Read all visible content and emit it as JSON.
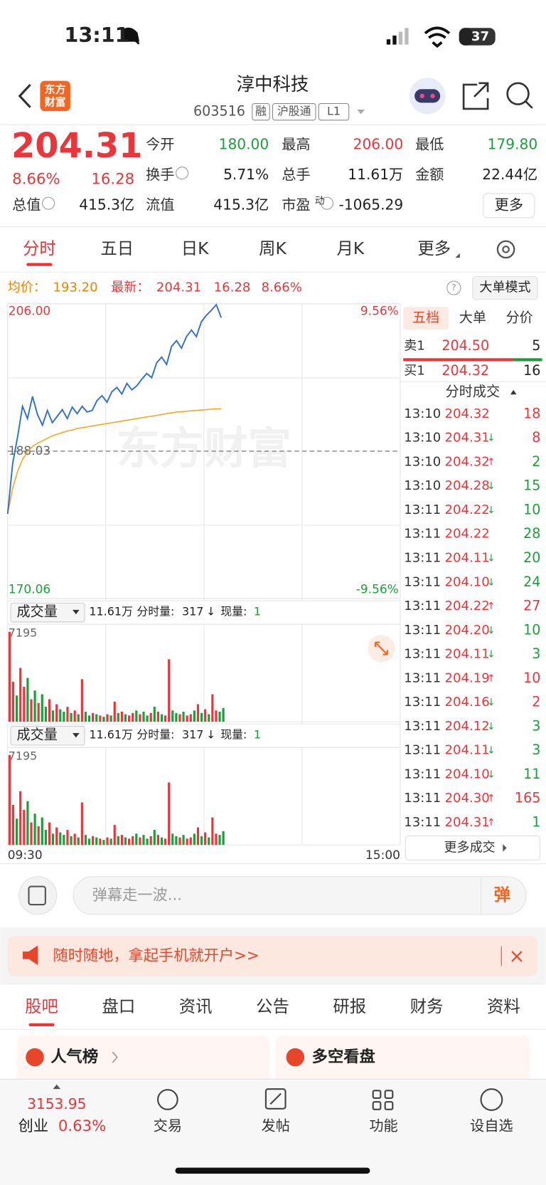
{
  "status_bar": {
    "time": "13:11",
    "battery": "37"
  },
  "header": {
    "logo": [
      "东方",
      "财富"
    ],
    "title": "淳中科技",
    "code": "603516",
    "tags": [
      "融",
      "沪股通",
      "L1"
    ]
  },
  "quote": {
    "price": "204.31",
    "change_pct": "8.66%",
    "change": "16.28",
    "rows": [
      [
        {
          "label": "今开",
          "value": "180.00",
          "color": "green"
        },
        {
          "label": "最高",
          "value": "206.00",
          "color": "red"
        },
        {
          "label": "最低",
          "value": "179.80",
          "color": "green"
        }
      ],
      [
        {
          "label": "换手",
          "value": "5.71%",
          "info": true
        },
        {
          "label": "总手",
          "value": "11.61万"
        },
        {
          "label": "金额",
          "value": "22.44亿"
        }
      ],
      [
        {
          "label": "总值",
          "value": "415.3亿",
          "info": true
        },
        {
          "label": "流值",
          "value": "415.3亿"
        },
        {
          "label": "市盈",
          "superscript": "动",
          "value": "-1065.29",
          "info": true
        }
      ]
    ],
    "more_button": "更多"
  },
  "chart_tabs": {
    "items": [
      "分时",
      "五日",
      "日K",
      "周K",
      "月K",
      "更多"
    ],
    "active": 0
  },
  "info_bar": {
    "avg_label": "均价：",
    "avg": "193.20",
    "latest_label": "最新：",
    "latest": "204.31",
    "change": "16.28",
    "change_pct": "8.66%",
    "mode_button": "大单模式"
  },
  "price_chart": {
    "ylim": [
      170.06,
      206.0
    ],
    "yticks": [
      {
        "value": 206.0,
        "label": "206.00"
      },
      188.03,
      {
        "value": 170.06,
        "label": "170.06"
      }
    ],
    "pct_ticks": [
      {
        "value": 9.56,
        "label": "9.56%"
      },
      {
        "value": -9.56,
        "label": "-9.56%"
      }
    ],
    "watermark": "东方财富",
    "price": {
      "color": "#2f6fd0",
      "values": [
        180.4,
        186.5,
        189.8,
        193.5,
        192.0,
        194.7,
        192.5,
        191.2,
        193.0,
        191.5,
        192.3,
        193.1,
        192.0,
        193.4,
        192.6,
        193.5,
        192.8,
        193.0,
        194.2,
        194.8,
        194.0,
        195.3,
        195.8,
        195.0,
        196.3,
        195.5,
        196.0,
        196.8,
        197.5,
        197.0,
        198.8,
        199.5,
        198.6,
        200.8,
        201.5,
        200.6,
        202.0,
        202.8,
        202.0,
        203.8,
        204.6,
        205.2,
        205.9,
        204.31
      ]
    },
    "avg": {
      "color": "#f5a623",
      "values": [
        180.4,
        183.5,
        185.6,
        187.0,
        188.0,
        188.6,
        189.0,
        189.3,
        189.6,
        189.9,
        190.1,
        190.3,
        190.5,
        190.6,
        190.8,
        190.9,
        191.0,
        191.1,
        191.2,
        191.3,
        191.4,
        191.5,
        191.6,
        191.7,
        191.8,
        191.9,
        192.0,
        192.1,
        192.2,
        192.3,
        192.4,
        192.5,
        192.6,
        192.7,
        192.8,
        192.85,
        192.9,
        192.95,
        193.0,
        193.05,
        193.1,
        193.15,
        193.18,
        193.2
      ]
    },
    "time_start": "09:30",
    "time_end": "15:00"
  },
  "volume_panels": [
    {
      "selector": "成交量",
      "summary": "11.61万",
      "split_label": "分时量:",
      "split": "317",
      "arrow": "↓",
      "current_label": "现量:",
      "current": "1"
    },
    {
      "selector": "成交量",
      "summary": "11.61万",
      "split_label": "分时量:",
      "split": "317",
      "arrow": "↓",
      "current_label": "现量:",
      "current": "1"
    }
  ],
  "volume": {
    "ylim": [
      0,
      7195
    ],
    "yticks": [
      7195
    ],
    "colors": {
      "u": "#e8363a",
      "d": "#1f9d3a"
    },
    "values": [
      7195,
      3200,
      2100,
      4300,
      2800,
      3500,
      1800,
      2500,
      1500,
      2200,
      1200,
      1800,
      900,
      1400,
      1000,
      800,
      1200,
      700,
      900,
      600,
      3400,
      800,
      500,
      700,
      600,
      500,
      400,
      600,
      500,
      1600,
      700,
      800,
      600,
      500,
      700,
      900,
      600,
      800,
      500,
      700,
      1200,
      800,
      600,
      500,
      5000,
      900,
      700,
      600,
      800,
      500,
      600,
      900,
      1400,
      700,
      1000,
      600,
      2200,
      900,
      800,
      1100
    ],
    "dirs": [
      "u",
      "u",
      "d",
      "u",
      "u",
      "d",
      "u",
      "d",
      "u",
      "d",
      "d",
      "u",
      "d",
      "u",
      "d",
      "d",
      "u",
      "d",
      "u",
      "d",
      "u",
      "d",
      "d",
      "u",
      "d",
      "u",
      "d",
      "u",
      "d",
      "u",
      "d",
      "u",
      "d",
      "u",
      "u",
      "d",
      "u",
      "d",
      "d",
      "u",
      "d",
      "u",
      "d",
      "u",
      "u",
      "d",
      "d",
      "u",
      "d",
      "u",
      "u",
      "d",
      "u",
      "d",
      "u",
      "d",
      "u",
      "u",
      "d",
      "d"
    ]
  },
  "order_book": {
    "tabs": [
      "五档",
      "大单",
      "分价"
    ],
    "active": 0,
    "sell": {
      "label": "卖1",
      "price": "204.50",
      "volume": "5"
    },
    "buy": {
      "label": "买1",
      "price": "204.32",
      "volume": "16"
    },
    "trades_title": "分时成交",
    "trades": [
      {
        "time": "13:10",
        "price": "204.32",
        "volume": "18",
        "volume_color": "red"
      },
      {
        "time": "13:10",
        "price": "204.31",
        "arrow": "↓",
        "volume": "8",
        "volume_color": "red"
      },
      {
        "time": "13:10",
        "price": "204.32",
        "arrow": "↑",
        "volume": "2",
        "volume_color": "green"
      },
      {
        "time": "13:10",
        "price": "204.28",
        "arrow": "↓",
        "volume": "15",
        "volume_color": "green"
      },
      {
        "time": "13:11",
        "price": "204.22",
        "arrow": "↓",
        "volume": "10",
        "volume_color": "green"
      },
      {
        "time": "13:11",
        "price": "204.22",
        "volume": "28",
        "volume_color": "green"
      },
      {
        "time": "13:11",
        "price": "204.11",
        "arrow": "↓",
        "volume": "20",
        "volume_color": "green"
      },
      {
        "time": "13:11",
        "price": "204.10",
        "arrow": "↓",
        "volume": "24",
        "volume_color": "green"
      },
      {
        "time": "13:11",
        "price": "204.22",
        "arrow": "↑",
        "volume": "27",
        "volume_color": "red"
      },
      {
        "time": "13:11",
        "price": "204.20",
        "arrow": "↓",
        "volume": "10",
        "volume_color": "green"
      },
      {
        "time": "13:11",
        "price": "204.11",
        "arrow": "↓",
        "volume": "3",
        "volume_color": "green"
      },
      {
        "time": "13:11",
        "price": "204.19",
        "arrow": "↑",
        "volume": "10",
        "volume_color": "red"
      },
      {
        "time": "13:11",
        "price": "204.16",
        "arrow": "↓",
        "volume": "2",
        "volume_color": "red"
      },
      {
        "time": "13:11",
        "price": "204.12",
        "arrow": "↓",
        "volume": "3",
        "volume_color": "green"
      },
      {
        "time": "13:11",
        "price": "204.11",
        "arrow": "↓",
        "volume": "3",
        "volume_color": "green"
      },
      {
        "time": "13:11",
        "price": "204.10",
        "arrow": "↓",
        "volume": "11",
        "volume_color": "green"
      },
      {
        "time": "13:11",
        "price": "204.30",
        "arrow": "↑",
        "volume": "165",
        "volume_color": "red"
      },
      {
        "time": "13:11",
        "price": "204.31",
        "arrow": "↑",
        "volume": "1",
        "volume_color": "green"
      }
    ],
    "more": "更多成交"
  },
  "comment_bar": {
    "placeholder": "弹幕走一波...",
    "button": "弹"
  },
  "banner": {
    "text": "随时随地，拿起手机就开户>>"
  },
  "section_tabs": {
    "items": [
      "股吧",
      "盘口",
      "资讯",
      "公告",
      "研报",
      "财务",
      "资料"
    ],
    "active": 0
  },
  "cards": [
    {
      "title": "人气榜"
    },
    {
      "title": "多空看盘"
    }
  ],
  "bottom_nav": {
    "index_value": "3153.95",
    "index_name": "创业",
    "index_change": "0.63%",
    "items": [
      "交易",
      "发帖",
      "功能",
      "设自选"
    ]
  }
}
